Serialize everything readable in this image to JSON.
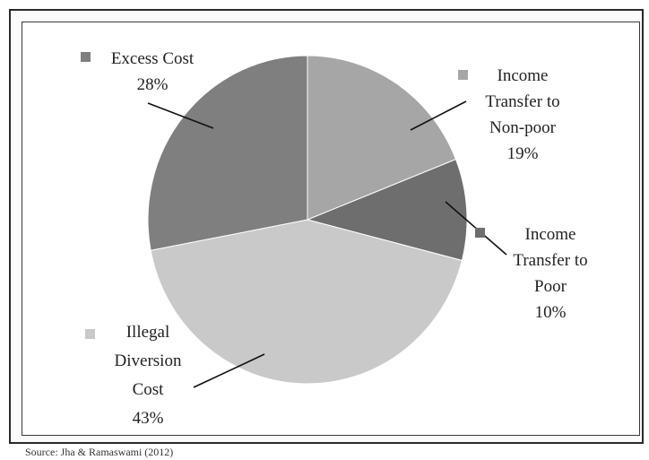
{
  "chart_data": {
    "type": "pie",
    "categories": [
      "Income Transfer to Non-poor",
      "Income Transfer to Poor",
      "Illegal Diversion Cost",
      "Excess Cost"
    ],
    "values": [
      19,
      10,
      43,
      28
    ],
    "value_suffix": "%",
    "colors": [
      "#a6a6a6",
      "#6e6e6e",
      "#c9c9c9",
      "#7f7f7f"
    ],
    "legend_placement": "labels beside slices",
    "labels": [
      {
        "lines": [
          "Income",
          "Transfer to",
          "Non-poor",
          "19%"
        ]
      },
      {
        "lines": [
          "Income",
          "Transfer to",
          "Poor",
          "10%"
        ]
      },
      {
        "lines": [
          "Illegal",
          "Diversion",
          "Cost",
          "43%"
        ]
      },
      {
        "lines": [
          "Excess Cost",
          "28%"
        ]
      }
    ]
  },
  "source": "Source: Jha & Ramaswami (2012)"
}
